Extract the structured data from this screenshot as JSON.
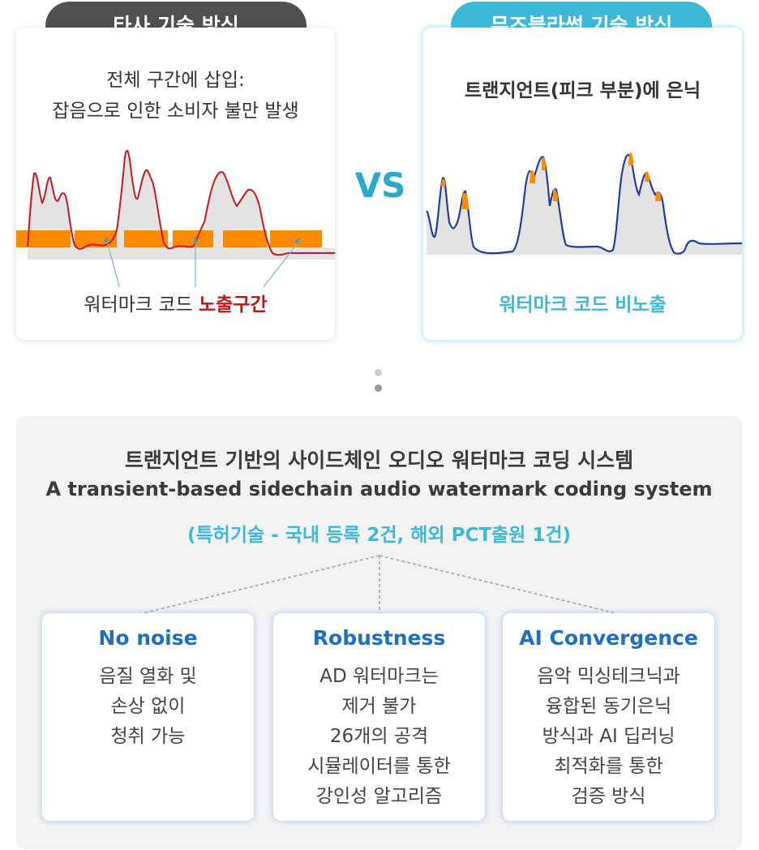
{
  "left": {
    "pill": "타사 기술 방식",
    "desc": [
      "전체 구간에 삽입:",
      "잡음으로 인한 소비자 불만 발생"
    ],
    "caption_plain": "워터마크 코드 ",
    "caption_highlight": "노출구간",
    "colors": {
      "wave": "#c8191f",
      "band": "#ff8a00",
      "fill": "#e3e3e3",
      "pointer": "#7fb3cf"
    }
  },
  "vs": "VS",
  "right": {
    "pill": "뮤즈블라썸 기술 방식",
    "desc": "트랜지언트(피크 부분)에 은닉",
    "caption": "워터마크 코드 비노출",
    "colors": {
      "wave": "#1f3f9a",
      "peak": "#ff8a00",
      "fill": "#e3e3e3"
    }
  },
  "system": {
    "title_ko": "트랜지언트 기반의 사이드체인 오디오 워터마크 코딩 시스템",
    "title_en": "A transient-based sidechain audio watermark coding system",
    "patent": "(특허기술 - 국내 등록  2건, 해외 PCT출원  1건)"
  },
  "features": [
    {
      "title": "No noise",
      "lines": [
        "음질 열화 및",
        "손상 없이",
        "청취 가능"
      ]
    },
    {
      "title": "Robustness",
      "lines": [
        "AD 워터마크는",
        "제거 불가",
        "26개의 공격",
        "시뮬레이터를 통한",
        "강인성 알고리즘"
      ]
    },
    {
      "title": "AI Convergence",
      "lines": [
        "음악 믹싱테크닉과",
        "융합된 동기은닉",
        "방식과 AI 딥러닝",
        "최적화를 통한",
        "검증 방식"
      ]
    }
  ],
  "colors": {
    "accent": "#3fb8d8",
    "dark_pill": "#505050",
    "feature_title": "#1e6ec2",
    "highlight_red": "#c01417"
  }
}
